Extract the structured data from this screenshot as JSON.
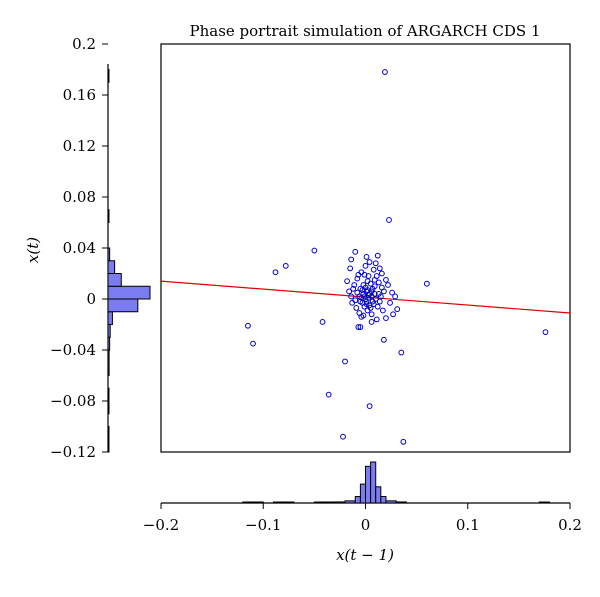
{
  "chart_data": {
    "type": "scatter",
    "title": "Phase portrait simulation of ARGARCH CDS 1",
    "xlabel": "x(t − 1)",
    "ylabel": "x(t)",
    "xlim": [
      -0.2,
      0.2
    ],
    "ylim": [
      -0.12,
      0.2
    ],
    "x_ticks": [
      -0.2,
      -0.1,
      0,
      0.1,
      0.2
    ],
    "x_tick_labels": [
      "−0.2",
      "−0.1",
      "0",
      "0.1",
      "0.2"
    ],
    "y_ticks": [
      -0.12,
      -0.08,
      -0.04,
      0,
      0.04,
      0.08,
      0.12,
      0.16,
      0.2
    ],
    "y_tick_labels": [
      "−0.12",
      "−0.08",
      "−0.04",
      "0",
      "0.04",
      "0.08",
      "0.12",
      "0.16",
      "0.2"
    ],
    "grid": false,
    "point_color": "#0000cc",
    "line_color": "#e00000",
    "hist_fill": "#7b7bf2",
    "fit_line": {
      "x": [
        -0.2,
        0.2
      ],
      "y": [
        0.014,
        -0.011
      ]
    },
    "points": [
      [
        0.019,
        0.178
      ],
      [
        0.023,
        0.062
      ],
      [
        -0.05,
        0.038
      ],
      [
        -0.078,
        0.026
      ],
      [
        -0.088,
        0.021
      ],
      [
        -0.115,
        -0.021
      ],
      [
        -0.11,
        -0.035
      ],
      [
        0.06,
        0.012
      ],
      [
        0.176,
        -0.026
      ],
      [
        -0.042,
        -0.018
      ],
      [
        -0.02,
        -0.049
      ],
      [
        0.035,
        -0.042
      ],
      [
        -0.036,
        -0.075
      ],
      [
        0.004,
        -0.084
      ],
      [
        -0.022,
        -0.108
      ],
      [
        0.037,
        -0.112
      ],
      [
        0.018,
        -0.032
      ],
      [
        -0.005,
        -0.022
      ],
      [
        0.012,
        0.034
      ],
      [
        -0.014,
        0.031
      ],
      [
        -0.01,
        0.037
      ],
      [
        -0.015,
        0.024
      ],
      [
        0.016,
        0.02
      ],
      [
        0.02,
        0.015
      ],
      [
        0.022,
        0.011
      ],
      [
        0.016,
        0.009
      ],
      [
        0.018,
        0.006
      ],
      [
        0.013,
        0.004
      ],
      [
        0.026,
        0.005
      ],
      [
        0.029,
        0.002
      ],
      [
        0.031,
        -0.008
      ],
      [
        0.027,
        -0.012
      ],
      [
        0.02,
        -0.015
      ],
      [
        0.011,
        -0.016
      ],
      [
        0.006,
        -0.018
      ],
      [
        -0.002,
        -0.013
      ],
      [
        -0.006,
        -0.011
      ],
      [
        -0.009,
        -0.007
      ],
      [
        -0.013,
        -0.003
      ],
      [
        -0.014,
        0.002
      ],
      [
        -0.016,
        0.006
      ],
      [
        -0.011,
        0.011
      ],
      [
        -0.008,
        0.016
      ],
      [
        -0.004,
        0.021
      ],
      [
        0,
        0.026
      ],
      [
        0.004,
        0.029
      ],
      [
        0.008,
        0.023
      ],
      [
        0.011,
        0.018
      ],
      [
        0.013,
        0.013
      ],
      [
        0.009,
        0.01
      ],
      [
        0.006,
        0.006
      ],
      [
        0.003,
        0.003
      ],
      [
        0,
        0
      ],
      [
        -0.003,
        -0.003
      ],
      [
        -0.006,
        0.002
      ],
      [
        -0.008,
        0.005
      ],
      [
        -0.005,
        0.008
      ],
      [
        -0.002,
        0.011
      ],
      [
        0.002,
        0.014
      ],
      [
        0.005,
        0.012
      ],
      [
        0.007,
        0.008
      ],
      [
        0.009,
        0.004
      ],
      [
        0.01,
        0
      ],
      [
        0.008,
        -0.004
      ],
      [
        0.005,
        -0.007
      ],
      [
        0.002,
        -0.009
      ],
      [
        -0.001,
        -0.006
      ],
      [
        0.001,
        -0.002
      ],
      [
        0.003,
        0.001
      ],
      [
        0.004,
        0.004
      ],
      [
        0.001,
        0.006
      ],
      [
        -0.002,
        0.004
      ],
      [
        -0.004,
        0.001
      ],
      [
        -0.005,
        -0.002
      ],
      [
        -0.003,
        0.007
      ],
      [
        0,
        0.009
      ],
      [
        0.002,
        0.007
      ],
      [
        0.006,
        0.002
      ],
      [
        0.007,
        -0.002
      ],
      [
        0.004,
        -0.005
      ],
      [
        0.001,
        -0.004
      ],
      [
        -0.001,
        0.002
      ],
      [
        0.012,
        -0.006
      ],
      [
        0.014,
        -0.002
      ],
      [
        0.015,
        0.002
      ],
      [
        -0.01,
        -0.001
      ],
      [
        -0.012,
        0.008
      ],
      [
        0.009,
        0.015
      ],
      [
        0.003,
        0.018
      ],
      [
        -0.001,
        0.019
      ],
      [
        -0.007,
        0.019
      ],
      [
        0.014,
        0.024
      ],
      [
        0.006,
        -0.012
      ],
      [
        -0.004,
        -0.014
      ],
      [
        0.024,
        -0.003
      ],
      [
        -0.018,
        0.014
      ],
      [
        0.017,
        -0.009
      ],
      [
        -0.007,
        -0.022
      ],
      [
        0.01,
        0.028
      ],
      [
        0.001,
        0.033
      ]
    ],
    "hist_x": [
      {
        "from": -0.12,
        "to": -0.1,
        "count": 1
      },
      {
        "from": -0.09,
        "to": -0.07,
        "count": 1
      },
      {
        "from": -0.05,
        "to": -0.04,
        "count": 1
      },
      {
        "from": -0.04,
        "to": -0.03,
        "count": 1
      },
      {
        "from": -0.03,
        "to": -0.02,
        "count": 2
      },
      {
        "from": -0.02,
        "to": -0.01,
        "count": 4
      },
      {
        "from": -0.01,
        "to": -0.005,
        "count": 12
      },
      {
        "from": -0.005,
        "to": 0,
        "count": 35
      },
      {
        "from": 0,
        "to": 0.005,
        "count": 68
      },
      {
        "from": 0.005,
        "to": 0.01,
        "count": 76
      },
      {
        "from": 0.01,
        "to": 0.015,
        "count": 30
      },
      {
        "from": 0.015,
        "to": 0.02,
        "count": 12
      },
      {
        "from": 0.02,
        "to": 0.03,
        "count": 4
      },
      {
        "from": 0.03,
        "to": 0.04,
        "count": 2
      },
      {
        "from": 0.17,
        "to": 0.18,
        "count": 1
      }
    ],
    "hist_y": [
      {
        "from": -0.12,
        "to": -0.1,
        "count": 1
      },
      {
        "from": -0.09,
        "to": -0.07,
        "count": 1
      },
      {
        "from": -0.06,
        "to": -0.04,
        "count": 2
      },
      {
        "from": -0.04,
        "to": -0.03,
        "count": 3
      },
      {
        "from": -0.03,
        "to": -0.02,
        "count": 4
      },
      {
        "from": -0.02,
        "to": -0.01,
        "count": 8
      },
      {
        "from": -0.01,
        "to": 0,
        "count": 54
      },
      {
        "from": 0,
        "to": 0.01,
        "count": 76
      },
      {
        "from": 0.01,
        "to": 0.02,
        "count": 24
      },
      {
        "from": 0.02,
        "to": 0.03,
        "count": 12
      },
      {
        "from": 0.03,
        "to": 0.04,
        "count": 3
      },
      {
        "from": 0.06,
        "to": 0.07,
        "count": 1
      },
      {
        "from": 0.17,
        "to": 0.18,
        "count": 1
      }
    ]
  }
}
